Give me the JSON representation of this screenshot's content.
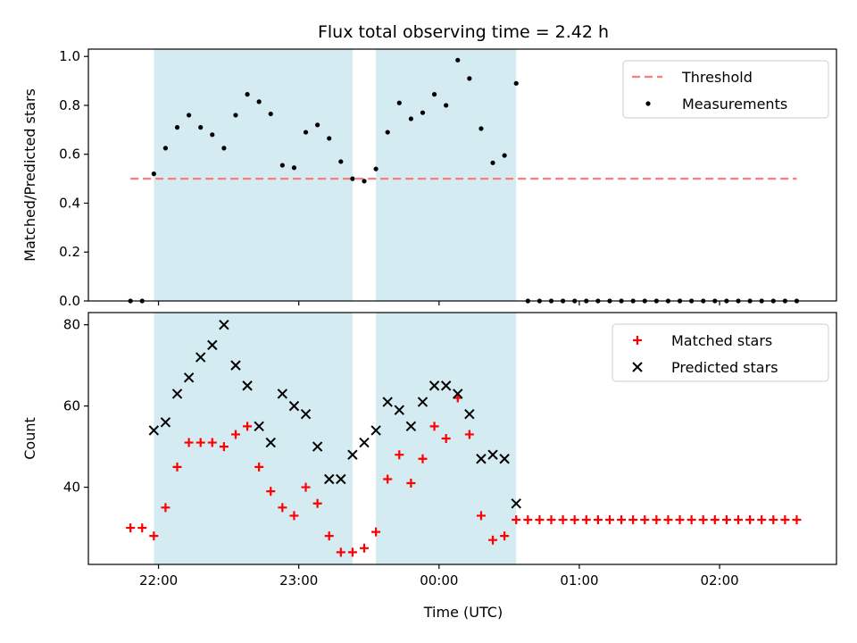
{
  "chart_data": {
    "title": "Flux total observing time = 2.42 h",
    "xlabel": "Time (UTC)",
    "x_unit": "UTC time of day",
    "x_range": [
      "21:30",
      "02:50"
    ],
    "x_tick_labels": [
      "22:00",
      "23:00",
      "00:00",
      "01:00",
      "02:00"
    ],
    "shaded_intervals": [
      {
        "start": "21:58",
        "end": "23:23"
      },
      {
        "start": "23:33",
        "end": "00:33"
      }
    ],
    "colors": {
      "shade": "#add8e6",
      "threshold": "#ff7a7a",
      "matched": "#ff0000",
      "predicted": "#000000",
      "measurements": "#000000"
    },
    "panels": [
      {
        "type": "scatter",
        "ylabel": "Matched/Predicted stars",
        "ylim": [
          0,
          1.03
        ],
        "y_ticks": [
          "0.0",
          "0.2",
          "0.4",
          "0.6",
          "0.8",
          "1.0"
        ],
        "legend": {
          "position": "top-right",
          "entries": [
            "Threshold",
            "Measurements"
          ]
        },
        "threshold": {
          "name": "Threshold",
          "value": 0.5,
          "x_start": "21:48",
          "x_end": "02:33"
        },
        "series": [
          {
            "name": "Measurements",
            "x": [
              "21:48",
              "21:53",
              "21:58",
              "22:03",
              "22:08",
              "22:13",
              "22:18",
              "22:23",
              "22:28",
              "22:33",
              "22:38",
              "22:43",
              "22:48",
              "22:53",
              "22:58",
              "23:03",
              "23:08",
              "23:13",
              "23:18",
              "23:23",
              "23:28",
              "23:33",
              "23:38",
              "23:43",
              "23:48",
              "23:53",
              "23:58",
              "00:03",
              "00:08",
              "00:13",
              "00:18",
              "00:23",
              "00:28",
              "00:33",
              "00:38",
              "00:43",
              "00:48",
              "00:53",
              "00:58",
              "01:03",
              "01:08",
              "01:13",
              "01:18",
              "01:23",
              "01:28",
              "01:33",
              "01:38",
              "01:43",
              "01:48",
              "01:53",
              "01:58",
              "02:03",
              "02:08",
              "02:13",
              "02:18",
              "02:23",
              "02:28",
              "02:33"
            ],
            "y": [
              0,
              0,
              0.52,
              0.625,
              0.71,
              0.76,
              0.71,
              0.68,
              0.625,
              0.76,
              0.845,
              0.815,
              0.765,
              0.555,
              0.545,
              0.69,
              0.72,
              0.665,
              0.57,
              0.5,
              0.49,
              0.54,
              0.69,
              0.81,
              0.745,
              0.77,
              0.845,
              0.8,
              0.985,
              0.91,
              0.705,
              0.565,
              0.595,
              0.89,
              0,
              0,
              0,
              0,
              0,
              0,
              0,
              0,
              0,
              0,
              0,
              0,
              0,
              0,
              0,
              0,
              0,
              0,
              0,
              0,
              0,
              0,
              0,
              0
            ]
          }
        ]
      },
      {
        "type": "scatter",
        "ylabel": "Count",
        "ylim": [
          21,
          83
        ],
        "y_ticks": [
          "40",
          "60",
          "80"
        ],
        "legend": {
          "position": "top-right",
          "entries": [
            "Matched stars",
            "Predicted stars"
          ]
        },
        "series": [
          {
            "name": "Matched stars",
            "marker": "plus",
            "x": [
              "21:48",
              "21:53",
              "21:58",
              "22:03",
              "22:08",
              "22:13",
              "22:18",
              "22:23",
              "22:28",
              "22:33",
              "22:38",
              "22:43",
              "22:48",
              "22:53",
              "22:58",
              "23:03",
              "23:08",
              "23:13",
              "23:18",
              "23:23",
              "23:28",
              "23:33",
              "23:38",
              "23:43",
              "23:48",
              "23:53",
              "23:58",
              "00:03",
              "00:08",
              "00:13",
              "00:18",
              "00:23",
              "00:28",
              "00:33",
              "00:38",
              "00:43",
              "00:48",
              "00:53",
              "00:58",
              "01:03",
              "01:08",
              "01:13",
              "01:18",
              "01:23",
              "01:28",
              "01:33",
              "01:38",
              "01:43",
              "01:48",
              "01:53",
              "01:58",
              "02:03",
              "02:08",
              "02:13",
              "02:18",
              "02:23",
              "02:28",
              "02:33"
            ],
            "y": [
              30,
              30,
              28,
              35,
              45,
              51,
              51,
              51,
              50,
              53,
              55,
              45,
              39,
              35,
              33,
              40,
              36,
              28,
              24,
              24,
              25,
              29,
              42,
              48,
              41,
              47,
              55,
              52,
              62,
              53,
              33,
              27,
              28,
              32,
              32,
              32,
              32,
              32,
              32,
              32,
              32,
              32,
              32,
              32,
              32,
              32,
              32,
              32,
              32,
              32,
              32,
              32,
              32,
              32,
              32,
              32,
              32,
              32
            ]
          },
          {
            "name": "Predicted stars",
            "marker": "x",
            "x": [
              "21:58",
              "22:03",
              "22:08",
              "22:13",
              "22:18",
              "22:23",
              "22:28",
              "22:33",
              "22:38",
              "22:43",
              "22:48",
              "22:53",
              "22:58",
              "23:03",
              "23:08",
              "23:13",
              "23:18",
              "23:23",
              "23:28",
              "23:33",
              "23:38",
              "23:43",
              "23:48",
              "23:53",
              "23:58",
              "00:03",
              "00:08",
              "00:13",
              "00:18",
              "00:23",
              "00:28",
              "00:33"
            ],
            "y": [
              54,
              56,
              63,
              67,
              72,
              75,
              80,
              70,
              65,
              55,
              51,
              63,
              60,
              58,
              50,
              42,
              42,
              48,
              51,
              54,
              61,
              59,
              55,
              61,
              65,
              65,
              63,
              58,
              47,
              48,
              47,
              36
            ]
          }
        ]
      }
    ]
  }
}
